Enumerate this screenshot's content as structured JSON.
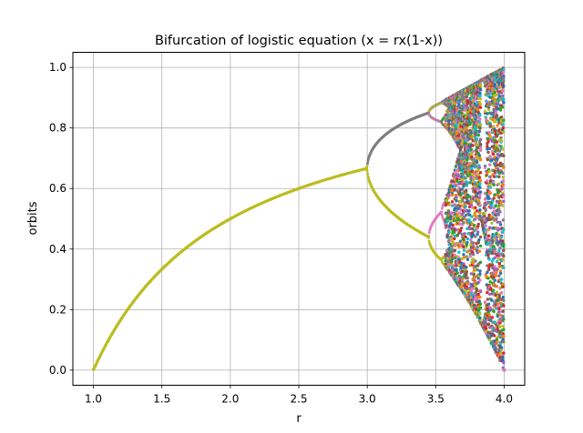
{
  "chart_data": {
    "type": "scatter",
    "title": "Bifurcation of logistic equation (x = rx(1-x))",
    "xlabel": "r",
    "ylabel": "orbits",
    "xlim": [
      0.85,
      4.15
    ],
    "ylim": [
      -0.05,
      1.05
    ],
    "xticks": [
      "1.0",
      "1.5",
      "2.0",
      "2.5",
      "3.0",
      "3.5",
      "4.0"
    ],
    "xtick_values": [
      1.0,
      1.5,
      2.0,
      2.5,
      3.0,
      3.5,
      4.0
    ],
    "yticks": [
      "0.0",
      "0.2",
      "0.4",
      "0.6",
      "0.8",
      "1.0"
    ],
    "ytick_values": [
      0.0,
      0.2,
      0.4,
      0.6,
      0.8,
      1.0
    ],
    "grid": true,
    "equation": "x(n+1) = r * x(n) * (1 - x(n))",
    "r_range": [
      1.0,
      4.0
    ],
    "regimes": [
      {
        "r_from": 1.0,
        "r_to": 3.0,
        "behavior": "fixed point",
        "x_at_start": 0.0,
        "x_at_end": 0.667
      },
      {
        "r_from": 3.0,
        "r_to": 3.449,
        "behavior": "period-2 cycle",
        "upper_at_end": 0.849,
        "lower_at_end": 0.44
      },
      {
        "r_from": 3.449,
        "r_to": 3.57,
        "behavior": "period-4 / period-doubling cascade"
      },
      {
        "r_from": 3.57,
        "r_to": 4.0,
        "behavior": "chaos",
        "x_range_at_end": [
          0.0,
          1.0
        ]
      }
    ],
    "series_colors": [
      "#1f77b4",
      "#ff7f0e",
      "#2ca02c",
      "#d62728",
      "#9467bd",
      "#8c564b",
      "#e377c2",
      "#7f7f7f",
      "#bcbd22",
      "#17becf"
    ],
    "highlight_colors": {
      "main_branch": "#bcbd22",
      "upper_branch": "#7f7f7f",
      "pink_branch": "#e377c2"
    }
  }
}
